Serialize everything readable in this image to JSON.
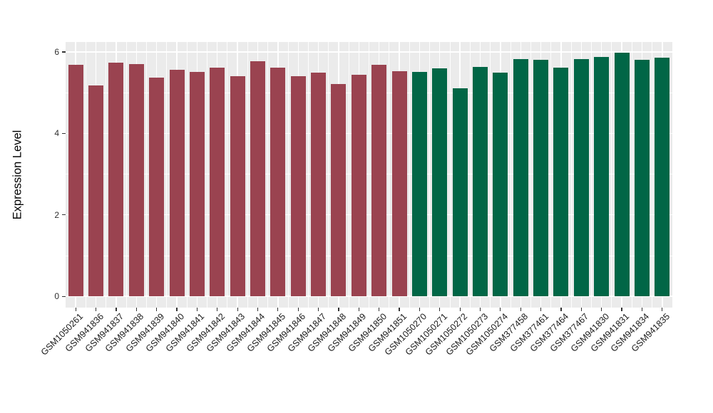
{
  "chart_data": {
    "type": "bar",
    "title": "",
    "xlabel": "",
    "ylabel": "Expression Level",
    "ylim": [
      0,
      6.28
    ],
    "yticks": [
      0,
      2,
      4,
      6
    ],
    "minor_gridlines_y": [
      1,
      3,
      5
    ],
    "grid": true,
    "legend_position": "none",
    "panel_background": "#EBEBEB",
    "gridline_color": "#FFFFFF",
    "categories": [
      "GSM1050261",
      "GSM941836",
      "GSM941837",
      "GSM941838",
      "GSM941839",
      "GSM941840",
      "GSM941841",
      "GSM941842",
      "GSM941843",
      "GSM941844",
      "GSM941845",
      "GSM941846",
      "GSM941847",
      "GSM941848",
      "GSM941849",
      "GSM941850",
      "GSM941851",
      "GSM1050270",
      "GSM1050271",
      "GSM1050272",
      "GSM1050273",
      "GSM1050274",
      "GSM377458",
      "GSM377461",
      "GSM377464",
      "GSM377467",
      "GSM941830",
      "GSM941831",
      "GSM941834",
      "GSM941835"
    ],
    "values": [
      5.69,
      5.18,
      5.74,
      5.7,
      5.37,
      5.56,
      5.51,
      5.62,
      5.4,
      5.78,
      5.61,
      5.4,
      5.49,
      5.22,
      5.44,
      5.68,
      5.53,
      5.51,
      5.59,
      5.1,
      5.63,
      5.5,
      5.82,
      5.8,
      5.62,
      5.83,
      5.88,
      5.98,
      5.8,
      5.86
    ],
    "bar_groups": [
      "maroon",
      "maroon",
      "maroon",
      "maroon",
      "maroon",
      "maroon",
      "maroon",
      "maroon",
      "maroon",
      "maroon",
      "maroon",
      "maroon",
      "maroon",
      "maroon",
      "maroon",
      "maroon",
      "maroon",
      "green",
      "green",
      "green",
      "green",
      "green",
      "green",
      "green",
      "green",
      "green",
      "green",
      "green",
      "green",
      "green"
    ],
    "group_colors": {
      "maroon": "#9A4350",
      "green": "#016646"
    },
    "axis_text_color": "#303030",
    "tick_color": "#333333"
  }
}
